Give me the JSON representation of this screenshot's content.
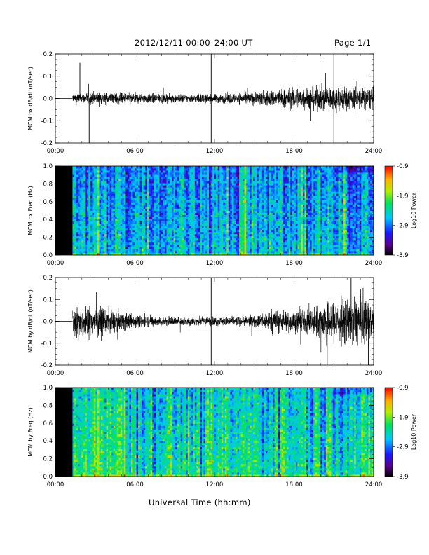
{
  "header": {
    "title": "2012/12/11  00:00–24:00 UT",
    "page": "Page 1/1"
  },
  "x_axis_title": "Universal Time (hh:mm)",
  "x_ticks": [
    "00:00",
    "06:00",
    "12:00",
    "18:00",
    "24:00"
  ],
  "chart_data": [
    {
      "type": "line",
      "ylabel": "MCM bx dB/dt (nT/sec)",
      "xlim": [
        0,
        24
      ],
      "ylim": [
        -0.2,
        0.2
      ],
      "yticks": [
        "-0.2",
        "-0.1",
        "0.0",
        "0.1",
        "0.2"
      ],
      "data_start_hour": 1.3,
      "envelope": {
        "hours": [
          1.3,
          3,
          6,
          9,
          12,
          15,
          18,
          21,
          24
        ],
        "amplitude": [
          0.025,
          0.03,
          0.025,
          0.02,
          0.02,
          0.03,
          0.05,
          0.06,
          0.05
        ]
      },
      "spikes": [
        {
          "hour": 1.85,
          "value": 0.16
        },
        {
          "hour": 2.55,
          "value": -0.2
        },
        {
          "hour": 11.75,
          "value": -0.2
        },
        {
          "hour": 11.75,
          "value": 0.2
        },
        {
          "hour": 21.0,
          "value": -0.2
        },
        {
          "hour": 21.0,
          "value": 0.2
        }
      ]
    },
    {
      "type": "heatmap",
      "ylabel": "MCM bx Freq (Hz)",
      "xlim": [
        0,
        24
      ],
      "ylim": [
        0,
        1.0
      ],
      "yticks": [
        "0.0",
        "0.2",
        "0.4",
        "0.6",
        "0.8",
        "1.0"
      ],
      "data_start_hour": 1.3,
      "colorbar": {
        "label": "Log10 Power",
        "ticks": [
          "-0.9",
          "-1.9",
          "-2.9",
          "-3.9"
        ],
        "range": [
          -3.9,
          -0.9
        ]
      },
      "level": -2.6
    },
    {
      "type": "line",
      "ylabel": "MCM by dB/dt (nT/sec)",
      "xlim": [
        0,
        24
      ],
      "ylim": [
        -0.2,
        0.2
      ],
      "yticks": [
        "-0.2",
        "-0.1",
        "0.0",
        "0.1",
        "0.2"
      ],
      "data_start_hour": 1.3,
      "envelope": {
        "hours": [
          1.3,
          2.5,
          4.5,
          6,
          9,
          12,
          15,
          16.5,
          18,
          19.5,
          21,
          23,
          24
        ],
        "amplitude": [
          0.07,
          0.08,
          0.05,
          0.03,
          0.02,
          0.02,
          0.025,
          0.06,
          0.05,
          0.07,
          0.1,
          0.12,
          0.09
        ]
      },
      "spikes": [
        {
          "hour": 11.75,
          "value": 0.2
        },
        {
          "hour": 11.75,
          "value": -0.2
        },
        {
          "hour": 20.5,
          "value": -0.2
        },
        {
          "hour": 22.3,
          "value": 0.2
        },
        {
          "hour": 23.6,
          "value": -0.2
        }
      ]
    },
    {
      "type": "heatmap",
      "ylabel": "MCM by Freq (Hz)",
      "xlim": [
        0,
        24
      ],
      "ylim": [
        0,
        1.0
      ],
      "yticks": [
        "0.0",
        "0.2",
        "0.4",
        "0.6",
        "0.8",
        "1.0"
      ],
      "data_start_hour": 1.3,
      "colorbar": {
        "label": "Log10 Power",
        "ticks": [
          "-0.9",
          "-1.9",
          "-2.9",
          "-3.9"
        ],
        "range": [
          -3.9,
          -0.9
        ]
      },
      "level": -2.3
    }
  ]
}
